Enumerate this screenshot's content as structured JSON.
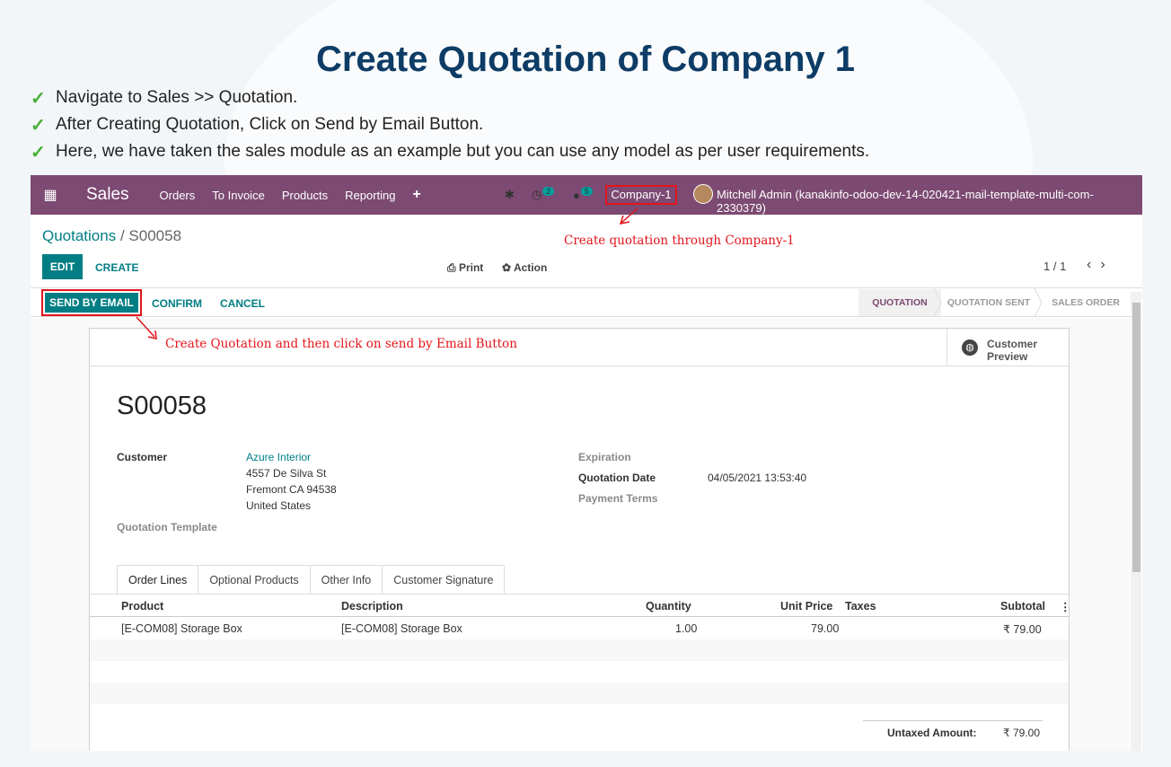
{
  "slide": {
    "title": "Create Quotation of Company 1",
    "bullets": [
      "Navigate to Sales >> Quotation.",
      "After Creating Quotation, Click on Send by Email Button.",
      "Here, we have taken the sales module as an example but you can use any model as per user requirements."
    ]
  },
  "navbar": {
    "app_name": "Sales",
    "menu": [
      "Orders",
      "To Invoice",
      "Products",
      "Reporting"
    ],
    "activity_count": "2",
    "messages_count": "5",
    "company": "Company-1",
    "user": "Mitchell Admin (kanakinfo-odoo-dev-14-020421-mail-template-multi-com-2330379)"
  },
  "annotations": {
    "company": "Create quotation through Company-1",
    "send_email": "Create Quotation and then click on send by Email Button"
  },
  "breadcrumb": {
    "parent": "Quotations",
    "current": "S00058"
  },
  "control": {
    "edit": "EDIT",
    "create": "CREATE",
    "print": "Print",
    "action": "Action",
    "pager": "1 / 1"
  },
  "statusbar": {
    "send_by_email": "SEND BY EMAIL",
    "confirm": "CONFIRM",
    "cancel": "CANCEL",
    "stages": [
      "QUOTATION",
      "QUOTATION SENT",
      "SALES ORDER"
    ]
  },
  "sheet": {
    "customer_preview": [
      "Customer",
      "Preview"
    ],
    "name": "S00058",
    "customer_label": "Customer",
    "customer_name": "Azure Interior",
    "address": [
      "4557 De Silva St",
      "Fremont CA 94538",
      "United States"
    ],
    "quotation_template_label": "Quotation Template",
    "expiration_label": "Expiration",
    "quotation_date_label": "Quotation Date",
    "quotation_date": "04/05/2021 13:53:40",
    "payment_terms_label": "Payment Terms",
    "tabs": [
      "Order Lines",
      "Optional Products",
      "Other Info",
      "Customer Signature"
    ],
    "columns": [
      "Product",
      "Description",
      "Quantity",
      "Unit Price",
      "Taxes",
      "Subtotal"
    ],
    "lines": [
      {
        "product": "[E-COM08] Storage Box",
        "description": "[E-COM08] Storage Box",
        "quantity": "1.00",
        "unit_price": "79.00",
        "taxes": "",
        "subtotal": "₹ 79.00"
      }
    ],
    "untaxed_label": "Untaxed Amount:",
    "untaxed_value": "₹ 79.00"
  }
}
